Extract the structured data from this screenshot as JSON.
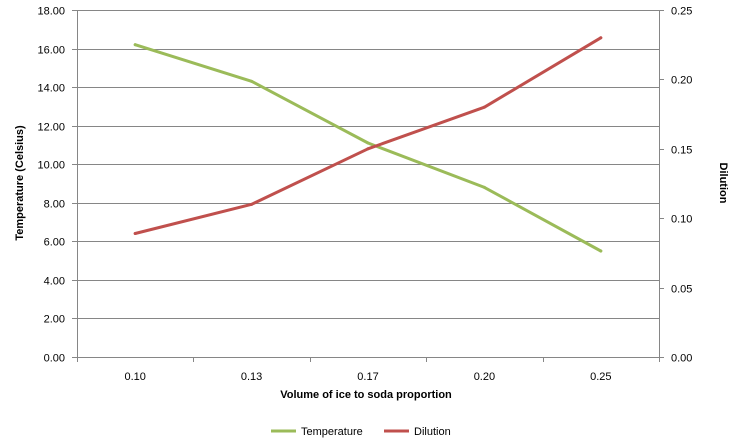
{
  "chart_data": {
    "type": "line",
    "title": "",
    "xlabel": "Volume of ice to soda proportion",
    "ylabel": "Temperature (Celsius)",
    "y2label": "Dilution",
    "categories": [
      "0.10",
      "0.13",
      "0.17",
      "0.20",
      "0.25"
    ],
    "ylim": [
      0,
      18
    ],
    "y_ticks": [
      "0.00",
      "2.00",
      "4.00",
      "6.00",
      "8.00",
      "10.00",
      "12.00",
      "14.00",
      "16.00",
      "18.00"
    ],
    "y2lim": [
      0,
      0.25
    ],
    "y2_ticks": [
      "0.00",
      "0.05",
      "0.10",
      "0.15",
      "0.20",
      "0.25"
    ],
    "grid": true,
    "legend_position": "bottom",
    "series": [
      {
        "name": "Temperature",
        "axis": "left",
        "color": "#9BBB59",
        "values": [
          16.2,
          14.3,
          11.1,
          8.8,
          5.5
        ]
      },
      {
        "name": "Dilution",
        "axis": "right",
        "color": "#C0504D",
        "values": [
          0.089,
          0.11,
          0.15,
          0.18,
          0.23
        ]
      }
    ]
  }
}
